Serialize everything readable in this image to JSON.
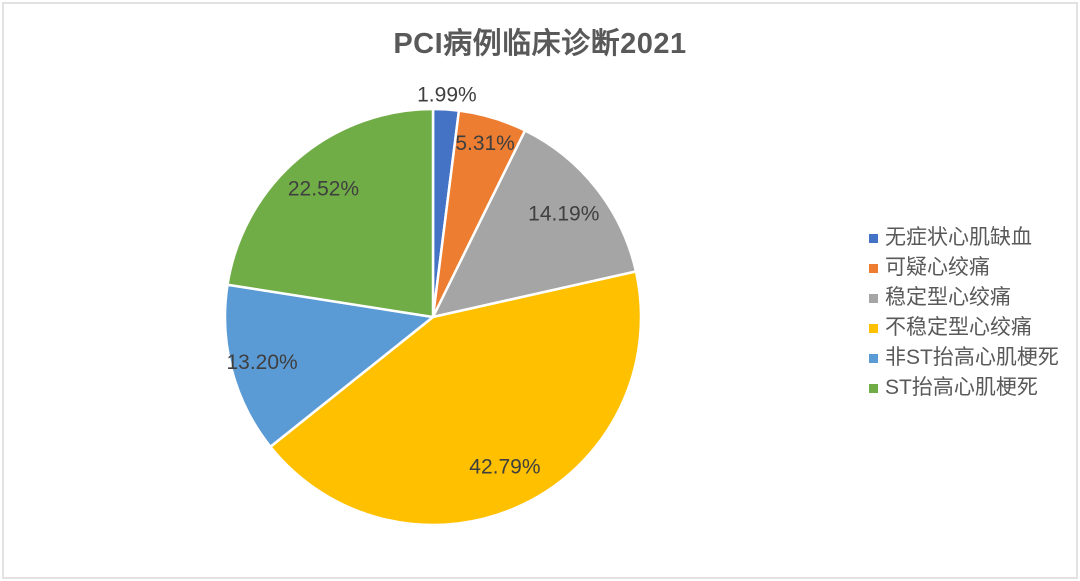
{
  "title": "PCI病例临床诊断2021",
  "chart_data": {
    "type": "pie",
    "title": "PCI病例临床诊断2021",
    "categories": [
      "无症状心肌缺血",
      "可疑心绞痛",
      "稳定型心绞痛",
      "不稳定型心绞痛",
      "非ST抬高心肌梗死",
      "ST抬高心肌梗死"
    ],
    "values": [
      1.99,
      5.31,
      14.19,
      42.79,
      13.2,
      22.52
    ],
    "labels": [
      "1.99%",
      "5.31%",
      "14.19%",
      "42.79%",
      "13.20%",
      "22.52%"
    ],
    "colors": [
      "#4472C4",
      "#ED7D31",
      "#A5A5A5",
      "#FFC000",
      "#5B9BD5",
      "#70AD47"
    ],
    "unit": "%",
    "start_angle_deg": 0,
    "direction": "clockwise",
    "legend_position": "right",
    "label_radius_factors": [
      1.07,
      0.87,
      0.8,
      0.8,
      0.85,
      0.81
    ]
  },
  "style": {
    "title_color": "#595959",
    "data_label_color": "#3f3f3f",
    "legend_text_color": "#595959",
    "slice_border_color": "#ffffff",
    "frame_border_color": "#e2e2e2",
    "background": "#ffffff"
  }
}
